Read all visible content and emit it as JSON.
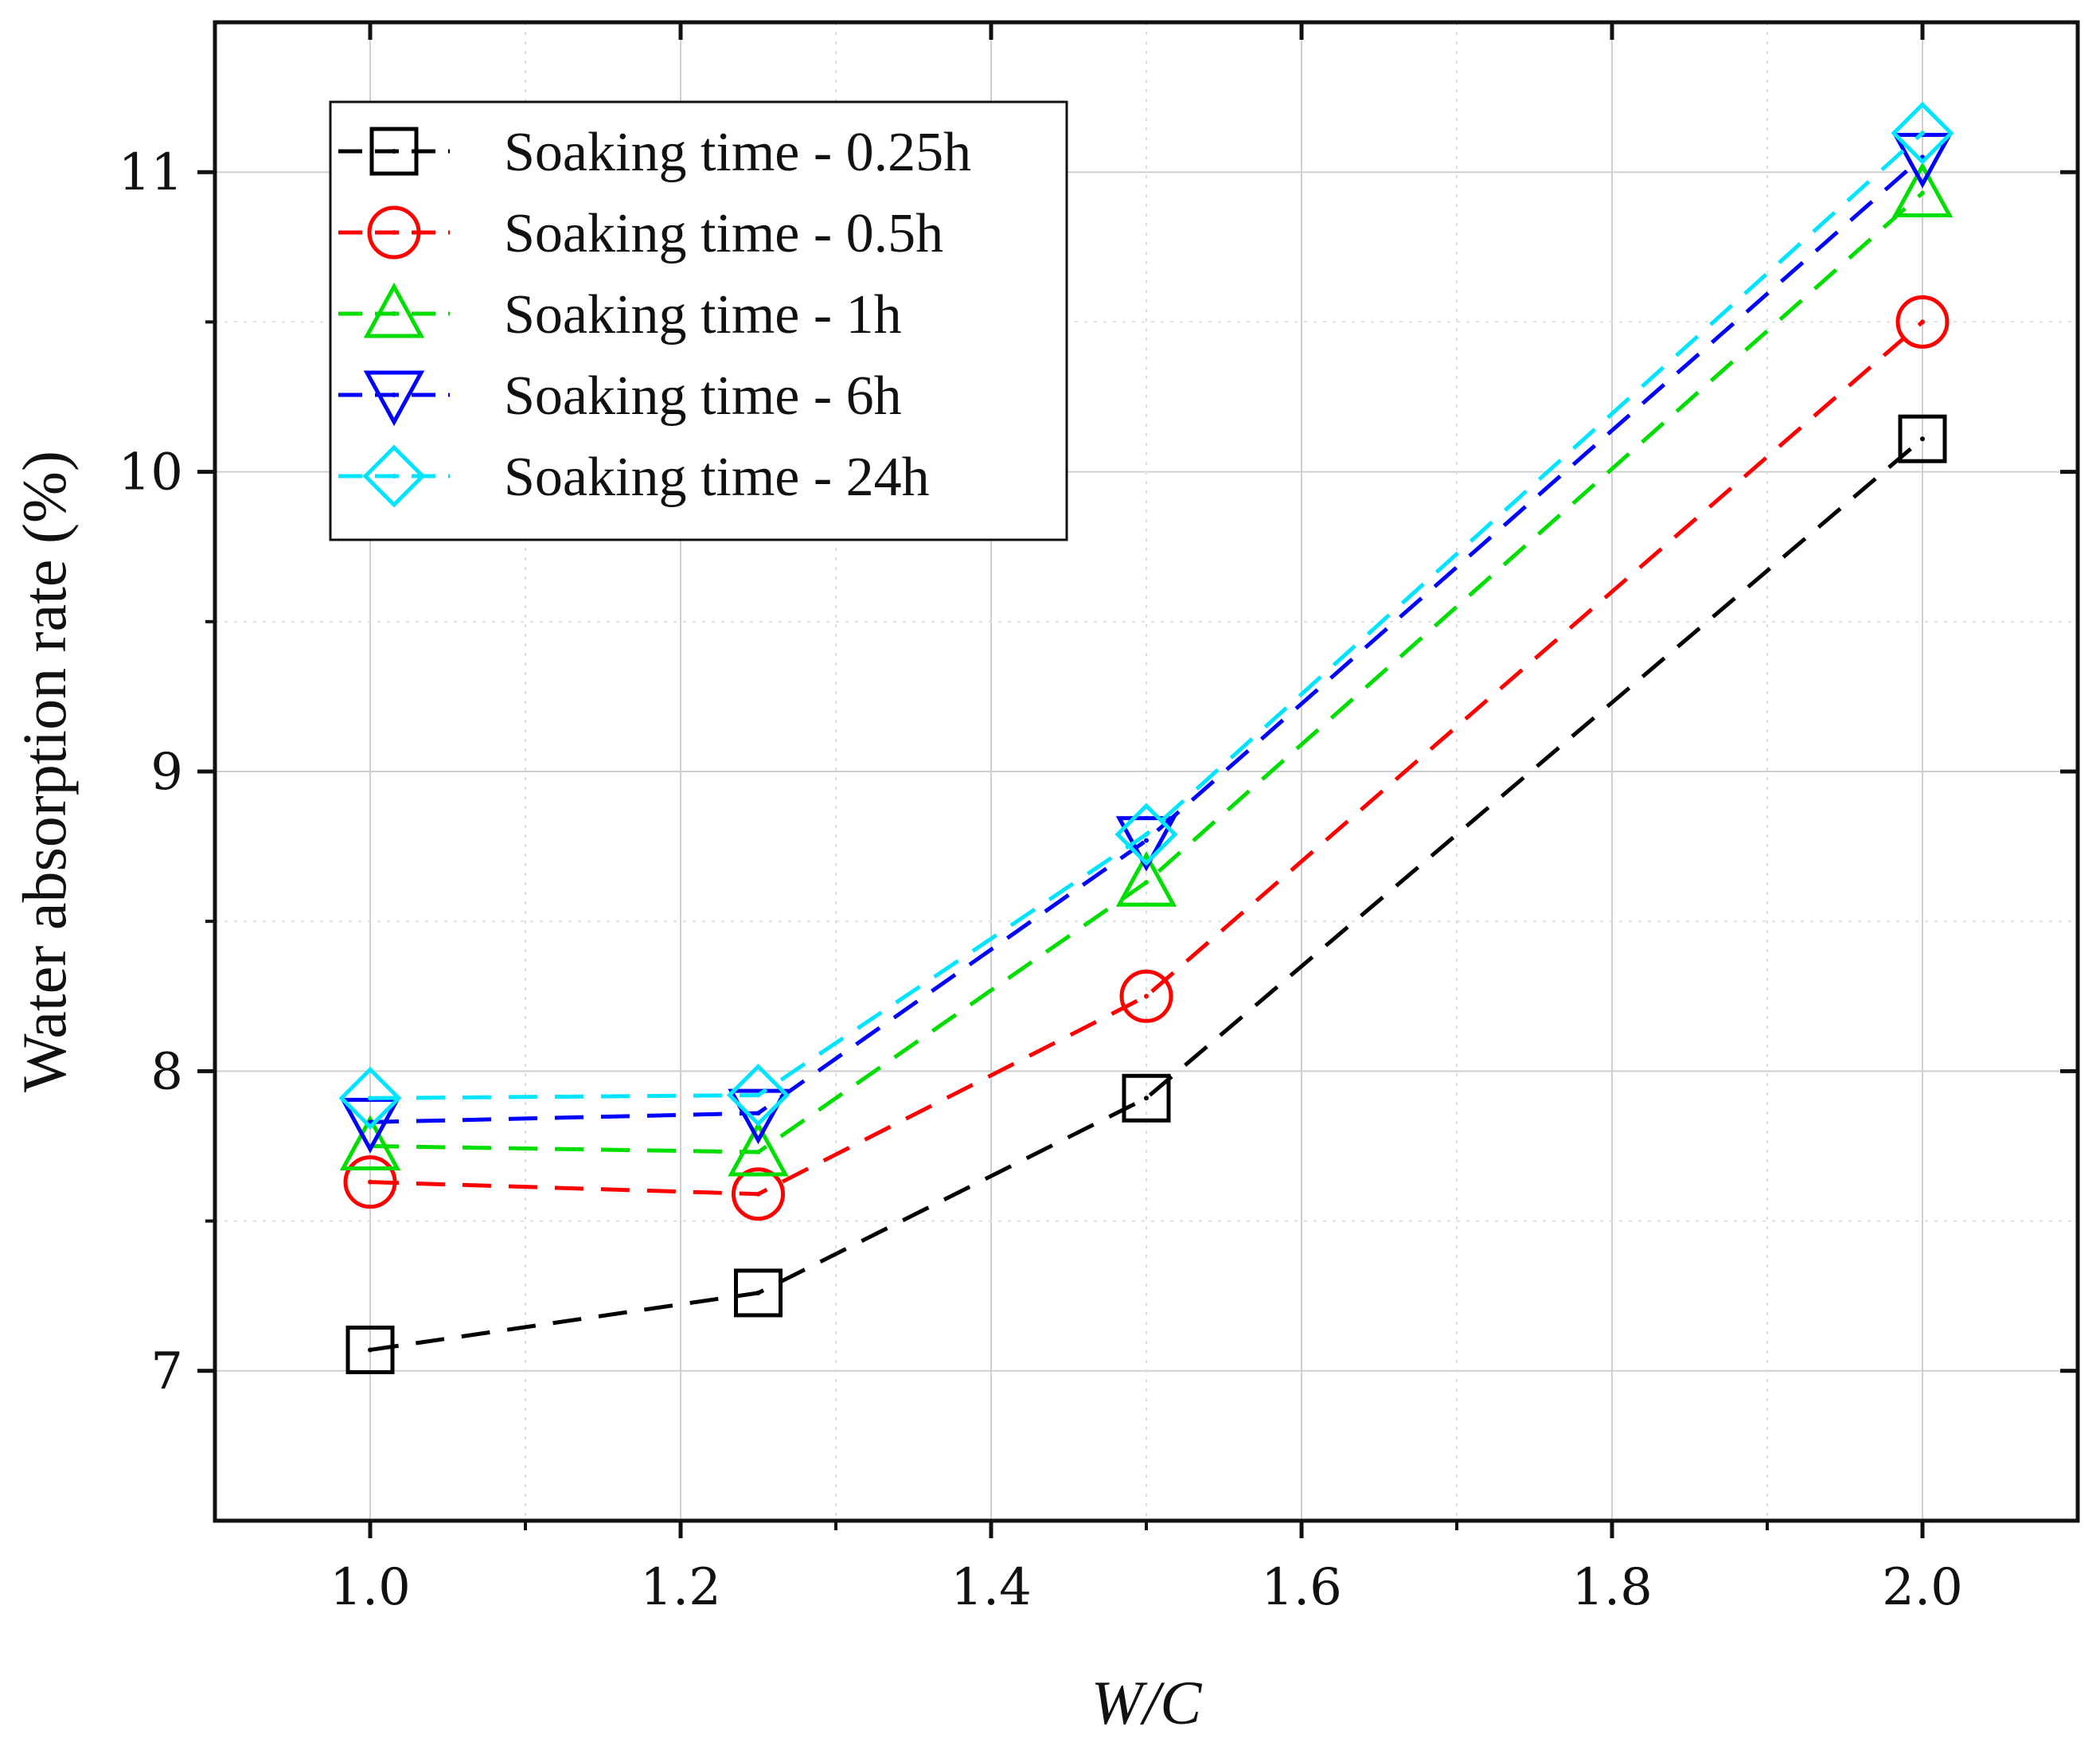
{
  "chart_data": {
    "type": "line",
    "title": "",
    "xlabel": "W/C",
    "ylabel": "Water absorption rate (%)",
    "xlim": [
      0.9,
      2.1
    ],
    "ylim": [
      6.5,
      11.5
    ],
    "xticks": [
      1.0,
      1.2,
      1.4,
      1.6,
      1.8,
      2.0
    ],
    "xtick_labels": [
      "1.0",
      "1.2",
      "1.4",
      "1.6",
      "1.8",
      "2.0"
    ],
    "yticks": [
      7,
      8,
      9,
      10,
      11
    ],
    "ytick_labels": [
      "7",
      "8",
      "9",
      "10",
      "11"
    ],
    "grid": true,
    "legend_position": "top-left",
    "x": [
      1.0,
      1.25,
      1.5,
      2.0
    ],
    "series": [
      {
        "name": "Soaking time - 0.25h",
        "marker": "square",
        "color": "#000000",
        "values": [
          7.07,
          7.26,
          7.91,
          10.11
        ]
      },
      {
        "name": "Soaking time - 0.5h",
        "marker": "circle",
        "color": "#ff0000",
        "values": [
          7.63,
          7.59,
          8.25,
          10.5
        ]
      },
      {
        "name": "Soaking time - 1h",
        "marker": "triangle-up",
        "color": "#00dd00",
        "values": [
          7.75,
          7.73,
          8.63,
          10.93
        ]
      },
      {
        "name": "Soaking time - 6h",
        "marker": "triangle-down",
        "color": "#0000ff",
        "values": [
          7.83,
          7.86,
          8.77,
          11.05
        ]
      },
      {
        "name": "Soaking time - 24h",
        "marker": "diamond",
        "color": "#00e5ff",
        "values": [
          7.91,
          7.92,
          8.79,
          11.13
        ]
      }
    ]
  }
}
